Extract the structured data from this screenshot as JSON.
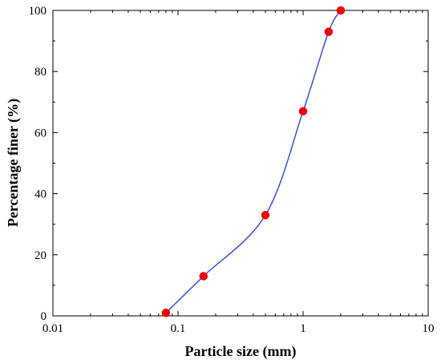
{
  "chart_data": {
    "type": "line",
    "title": "",
    "xlabel": "Particle size (mm)",
    "ylabel": "Percentage finer (%)",
    "xscale": "log",
    "xlim": [
      0.01,
      10
    ],
    "ylim": [
      0,
      100
    ],
    "xticks": [
      0.01,
      0.1,
      1,
      10
    ],
    "xtick_labels": [
      "0.01",
      "0.1",
      "1",
      "10"
    ],
    "yticks": [
      0,
      20,
      40,
      60,
      80,
      100
    ],
    "ytick_labels": [
      "0",
      "20",
      "40",
      "60",
      "80",
      "100"
    ],
    "grid": false,
    "legend": "none",
    "line_style": "smooth",
    "series": [
      {
        "line_color": "#3a4fd1",
        "marker_color": "#ee0000",
        "x": [
          0.08,
          0.16,
          0.5,
          1.0,
          1.6,
          2.0
        ],
        "y": [
          1,
          13,
          33,
          67,
          93,
          100
        ]
      }
    ]
  }
}
